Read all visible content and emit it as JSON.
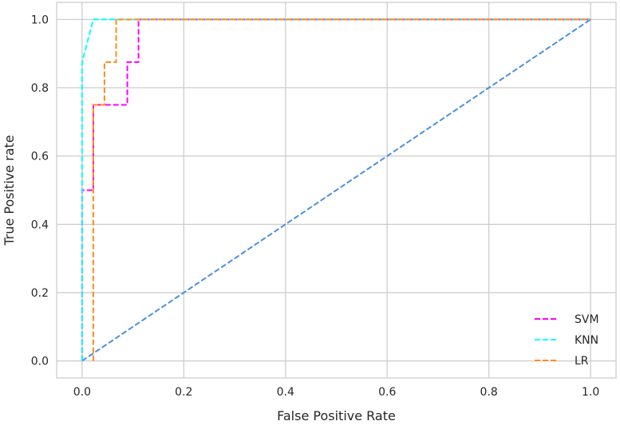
{
  "chart_data": {
    "type": "line",
    "title": "",
    "xlabel": "False Positive Rate",
    "ylabel": "True Positive rate",
    "xlim": [
      -0.05,
      1.05
    ],
    "ylim": [
      -0.05,
      1.05
    ],
    "xticks": [
      0.0,
      0.2,
      0.4,
      0.6,
      0.8,
      1.0
    ],
    "yticks": [
      0.0,
      0.2,
      0.4,
      0.6,
      0.8,
      1.0
    ],
    "xtick_labels": [
      "0.0",
      "0.2",
      "0.4",
      "0.6",
      "0.8",
      "1.0"
    ],
    "ytick_labels": [
      "0.0",
      "0.2",
      "0.4",
      "0.6",
      "0.8",
      "1.0"
    ],
    "grid": true,
    "legend_position": "lower-right",
    "series": [
      {
        "name": "SVM",
        "color": "#ff00ff",
        "x": [
          0.0,
          0.0,
          0.0,
          0.022,
          0.022,
          0.022,
          0.044,
          0.089,
          0.089,
          0.111,
          0.111,
          1.0
        ],
        "y": [
          0.0,
          0.5,
          0.5,
          0.5,
          0.625,
          0.75,
          0.75,
          0.75,
          0.875,
          0.875,
          1.0,
          1.0
        ]
      },
      {
        "name": "KNN",
        "color": "#00ffff",
        "x": [
          0.0,
          0.0,
          0.022,
          0.067,
          1.0
        ],
        "y": [
          0.0,
          0.875,
          1.0,
          1.0,
          1.0
        ]
      },
      {
        "name": "LR",
        "color": "#ff8c1a",
        "x": [
          0.022,
          0.022,
          0.044,
          0.044,
          0.067,
          0.067,
          1.0
        ],
        "y": [
          0.0,
          0.75,
          0.75,
          0.875,
          0.875,
          1.0,
          1.0
        ]
      }
    ],
    "reference_line": {
      "color": "#4a90e2",
      "x": [
        0.0,
        1.0
      ],
      "y": [
        0.0,
        1.0
      ]
    }
  }
}
